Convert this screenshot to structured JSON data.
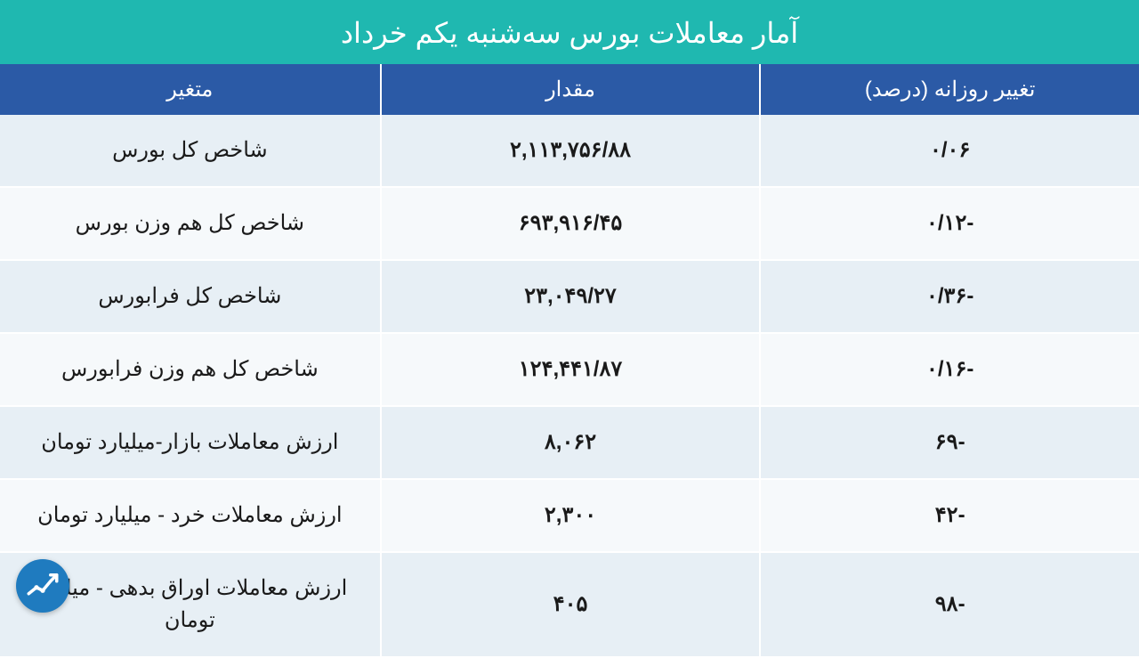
{
  "title": "آمار معاملات بورس سه‌شنبه یکم خرداد",
  "colors": {
    "title_bg": "#1fb8b0",
    "title_text": "#ffffff",
    "header_bg": "#2b5aa6",
    "header_text": "#ffffff",
    "row_odd_bg": "#e7eff5",
    "row_even_bg": "#f6f9fb",
    "cell_text": "#1a1a1a",
    "border": "#ffffff",
    "logo_bg": "#1f7bbf"
  },
  "columns": [
    {
      "key": "change",
      "label": "تغییر روزانه (درصد)"
    },
    {
      "key": "value",
      "label": "مقدار"
    },
    {
      "key": "metric",
      "label": "متغیر"
    }
  ],
  "rows": [
    {
      "metric": "شاخص کل بورس",
      "value": "۲,۱۱۳,۷۵۶/۸۸",
      "change": "۰/۰۶"
    },
    {
      "metric": "شاخص کل هم وزن بورس",
      "value": "۶۹۳,۹۱۶/۴۵",
      "change": "-۰/۱۲"
    },
    {
      "metric": "شاخص کل فرابورس",
      "value": "۲۳,۰۴۹/۲۷",
      "change": "-۰/۳۶"
    },
    {
      "metric": "شاخص کل هم وزن فرابورس",
      "value": "۱۲۴,۴۴۱/۸۷",
      "change": "-۰/۱۶"
    },
    {
      "metric": "ارزش معاملات بازار-میلیارد تومان",
      "value": "۸,۰۶۲",
      "change": "-۶۹"
    },
    {
      "metric": "ارزش معاملات خرد - میلیارد تومان",
      "value": "۲,۳۰۰",
      "change": "-۴۲"
    },
    {
      "metric": "ارزش معاملات اوراق بدهی - میلیارد تومان",
      "value": "۴۰۵",
      "change": "-۹۸"
    }
  ]
}
